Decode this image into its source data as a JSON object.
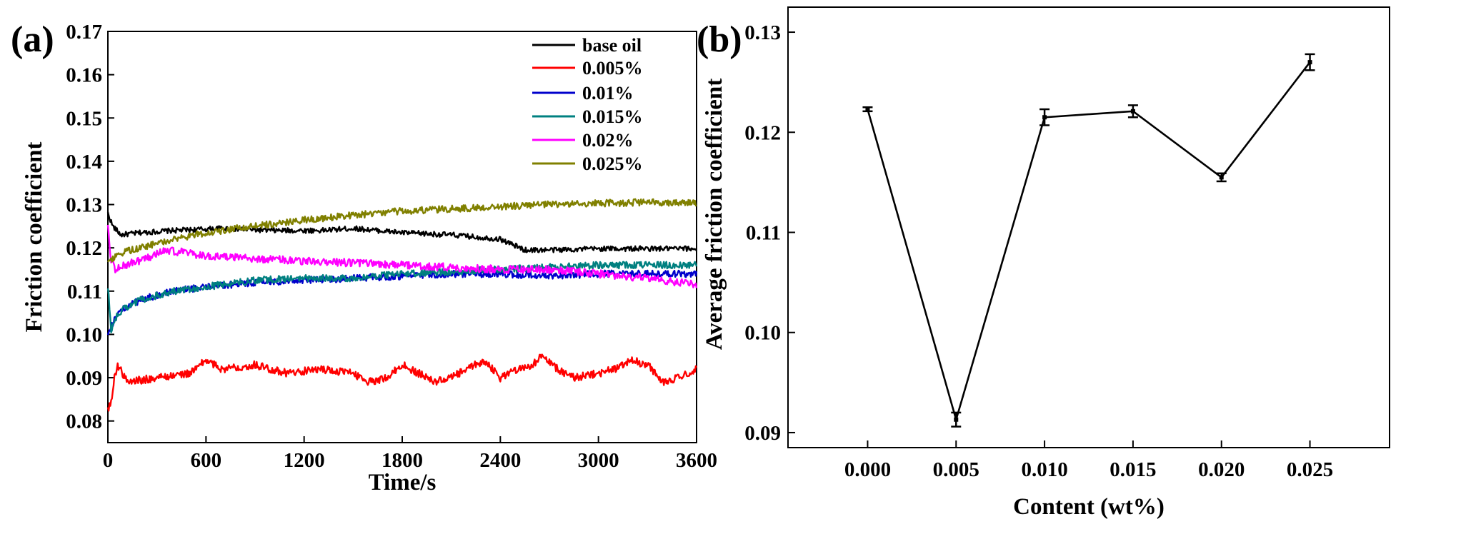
{
  "chart_data": [
    {
      "type": "line",
      "panel_label": "(a)",
      "xlabel": "Time/s",
      "ylabel": "Friction coefficient",
      "xlim": [
        0,
        3600
      ],
      "ylim": [
        0.075,
        0.17
      ],
      "x_ticks": [
        "0",
        "600",
        "1200",
        "1800",
        "2400",
        "3000",
        "3600"
      ],
      "y_ticks": [
        "0.08",
        "0.09",
        "0.10",
        "0.11",
        "0.12",
        "0.13",
        "0.14",
        "0.15",
        "0.16",
        "0.17"
      ],
      "legend_position": "top-right",
      "series": [
        {
          "name": "base oil",
          "color": "#000000",
          "noise": 0.0006,
          "x": [
            0,
            30,
            80,
            200,
            400,
            700,
            1000,
            1300,
            1500,
            1800,
            2100,
            2400,
            2550,
            2700,
            3000,
            3300,
            3600
          ],
          "y": [
            0.128,
            0.125,
            0.123,
            0.1235,
            0.124,
            0.1245,
            0.124,
            0.124,
            0.1245,
            0.1235,
            0.123,
            0.122,
            0.1195,
            0.1195,
            0.1198,
            0.1198,
            0.1198
          ]
        },
        {
          "name": "0.005%",
          "color": "#ff0000",
          "noise": 0.0009,
          "x": [
            0,
            20,
            40,
            60,
            120,
            300,
            500,
            600,
            700,
            900,
            1100,
            1300,
            1500,
            1600,
            1700,
            1800,
            1900,
            2000,
            2100,
            2200,
            2300,
            2400,
            2500,
            2600,
            2650,
            2750,
            2850,
            3000,
            3100,
            3200,
            3300,
            3400,
            3500,
            3600
          ],
          "y": [
            0.083,
            0.084,
            0.09,
            0.093,
            0.089,
            0.09,
            0.091,
            0.094,
            0.092,
            0.093,
            0.091,
            0.092,
            0.091,
            0.089,
            0.09,
            0.093,
            0.091,
            0.089,
            0.09,
            0.092,
            0.094,
            0.09,
            0.092,
            0.093,
            0.095,
            0.092,
            0.09,
            0.091,
            0.092,
            0.094,
            0.093,
            0.089,
            0.09,
            0.092
          ]
        },
        {
          "name": "0.01%",
          "color": "#0000cc",
          "noise": 0.0008,
          "x": [
            0,
            20,
            50,
            100,
            200,
            400,
            600,
            900,
            1200,
            1500,
            1800,
            2100,
            2400,
            2700,
            3000,
            3300,
            3600
          ],
          "y": [
            0.1,
            0.102,
            0.104,
            0.106,
            0.108,
            0.11,
            0.111,
            0.112,
            0.1125,
            0.113,
            0.1135,
            0.114,
            0.114,
            0.1135,
            0.114,
            0.114,
            0.114
          ]
        },
        {
          "name": "0.015%",
          "color": "#008080",
          "noise": 0.0008,
          "x": [
            0,
            20,
            50,
            100,
            200,
            400,
            600,
            900,
            1200,
            1500,
            1800,
            2100,
            2400,
            2700,
            3000,
            3300,
            3600
          ],
          "y": [
            0.111,
            0.101,
            0.104,
            0.106,
            0.108,
            0.11,
            0.111,
            0.1125,
            0.113,
            0.113,
            0.114,
            0.1145,
            0.115,
            0.1155,
            0.116,
            0.116,
            0.116
          ]
        },
        {
          "name": "0.02%",
          "color": "#ff00ff",
          "noise": 0.0009,
          "x": [
            0,
            15,
            40,
            100,
            200,
            350,
            450,
            600,
            900,
            1200,
            1500,
            1800,
            2100,
            2400,
            2700,
            3000,
            3300,
            3600
          ],
          "y": [
            0.126,
            0.118,
            0.115,
            0.116,
            0.117,
            0.1195,
            0.119,
            0.118,
            0.1175,
            0.117,
            0.1165,
            0.116,
            0.1155,
            0.115,
            0.115,
            0.114,
            0.113,
            0.1115
          ]
        },
        {
          "name": "0.025%",
          "color": "#808000",
          "noise": 0.0008,
          "x": [
            0,
            20,
            50,
            100,
            200,
            400,
            600,
            900,
            1200,
            1500,
            1800,
            2100,
            2400,
            2700,
            3000,
            3300,
            3600
          ],
          "y": [
            0.116,
            0.117,
            0.118,
            0.119,
            0.12,
            0.122,
            0.1235,
            0.125,
            0.1265,
            0.1275,
            0.1285,
            0.129,
            0.1295,
            0.13,
            0.1303,
            0.1305,
            0.1305
          ]
        }
      ]
    },
    {
      "type": "line",
      "panel_label": "(b)",
      "xlabel": "Content (wt%)",
      "ylabel": "Average friction coefficient",
      "xlim": [
        -0.0045,
        0.0295
      ],
      "ylim": [
        0.0885,
        0.1325
      ],
      "x_ticks": [
        "0.000",
        "0.005",
        "0.010",
        "0.015",
        "0.020",
        "0.025"
      ],
      "y_ticks": [
        "0.09",
        "0.10",
        "0.11",
        "0.12",
        "0.13"
      ],
      "series": [
        {
          "name": "average",
          "color": "#000000",
          "x": [
            0.0,
            0.005,
            0.01,
            0.015,
            0.02,
            0.025
          ],
          "y": [
            0.1223,
            0.0913,
            0.1215,
            0.1221,
            0.1155,
            0.127
          ],
          "err": [
            0.0002,
            0.0007,
            0.0008,
            0.0006,
            0.0004,
            0.0008
          ]
        }
      ]
    }
  ]
}
